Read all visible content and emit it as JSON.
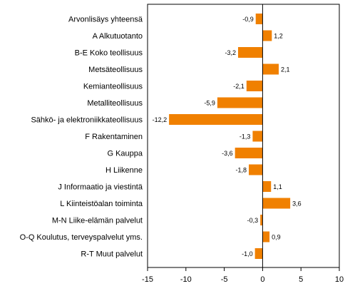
{
  "chart_data": {
    "type": "bar",
    "orientation": "horizontal",
    "categories": [
      "Arvonlisäys yhteensä",
      "A Alkutuotanto",
      "B-E Koko teollisuus",
      "Metsäteollisuus",
      "Kemianteollisuus",
      "Metalliteollisuus",
      "Sähkö- ja elektroniikkateollisuus",
      "F Rakentaminen",
      "G Kauppa",
      "H Liikenne",
      "J Informaatio ja viestintä",
      "L Kiinteistöalan toiminta",
      "M-N Liike-elämän palvelut",
      "O-Q Koulutus, terveyspalvelut yms.",
      "R-T Muut palvelut"
    ],
    "values": [
      -0.9,
      1.2,
      -3.2,
      2.1,
      -2.1,
      -5.9,
      -12.2,
      -1.3,
      -3.6,
      -1.8,
      1.1,
      3.6,
      -0.3,
      0.9,
      -1.0
    ],
    "value_labels": [
      "-0,9",
      "1,2",
      "-3,2",
      "2,1",
      "-2,1",
      "-5,9",
      "-12,2",
      "-1,3",
      "-3,6",
      "-1,8",
      "1,1",
      "3,6",
      "-0,3",
      "0,9",
      "-1,0"
    ],
    "xlim": [
      -15,
      10
    ],
    "xticks": [
      -15,
      -10,
      -5,
      0,
      5,
      10
    ],
    "xtick_labels": [
      "-15",
      "-10",
      "-5",
      "0",
      "5",
      "10"
    ],
    "title": "",
    "xlabel": "",
    "ylabel": "",
    "grid": false,
    "legend": "none",
    "colors": {
      "bar": "#f08000",
      "axis": "#000000",
      "frame": "#000000"
    }
  }
}
